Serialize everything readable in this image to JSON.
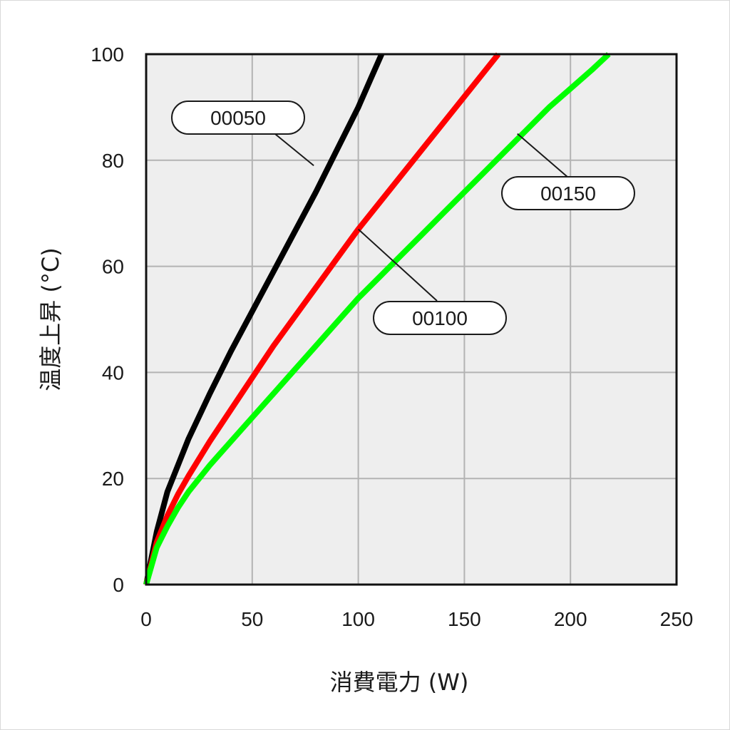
{
  "chart_data": {
    "type": "line",
    "xlabel": "消費電力 (W)",
    "ylabel": "温度上昇 (°C)",
    "xlim": [
      0,
      250
    ],
    "ylim": [
      0,
      100
    ],
    "x_ticks": [
      "0",
      "50",
      "100",
      "150",
      "200",
      "250"
    ],
    "y_ticks": [
      "0",
      "20",
      "40",
      "60",
      "80",
      "100"
    ],
    "grid": true,
    "plot_background": "#eeeeee",
    "series": [
      {
        "name": "00050",
        "color": "#000000",
        "points": [
          [
            0,
            0
          ],
          [
            5,
            10
          ],
          [
            10,
            17.5
          ],
          [
            20,
            27.5
          ],
          [
            30,
            36
          ],
          [
            40,
            44
          ],
          [
            50,
            51.5
          ],
          [
            60,
            59
          ],
          [
            70,
            66.5
          ],
          [
            80,
            74
          ],
          [
            90,
            82
          ],
          [
            100,
            90
          ],
          [
            106,
            95.5
          ],
          [
            111,
            100
          ]
        ]
      },
      {
        "name": "00100",
        "color": "#ff0000",
        "points": [
          [
            0,
            0
          ],
          [
            5,
            8
          ],
          [
            10,
            13
          ],
          [
            15,
            17
          ],
          [
            20,
            20.5
          ],
          [
            30,
            27
          ],
          [
            40,
            33
          ],
          [
            50,
            39
          ],
          [
            60,
            45
          ],
          [
            70,
            50.5
          ],
          [
            80,
            56
          ],
          [
            90,
            61.5
          ],
          [
            100,
            67
          ],
          [
            110,
            72
          ],
          [
            120,
            77
          ],
          [
            130,
            82
          ],
          [
            140,
            87
          ],
          [
            150,
            92
          ],
          [
            160,
            97
          ],
          [
            166,
            100
          ]
        ]
      },
      {
        "name": "00150",
        "color": "#00ff00",
        "points": [
          [
            0,
            0
          ],
          [
            5,
            7
          ],
          [
            10,
            11
          ],
          [
            15,
            14.5
          ],
          [
            20,
            17.5
          ],
          [
            30,
            22.5
          ],
          [
            40,
            27
          ],
          [
            50,
            31.5
          ],
          [
            60,
            36
          ],
          [
            70,
            40.5
          ],
          [
            80,
            45
          ],
          [
            90,
            49.5
          ],
          [
            100,
            54
          ],
          [
            110,
            58
          ],
          [
            120,
            62
          ],
          [
            130,
            66
          ],
          [
            140,
            70
          ],
          [
            150,
            74
          ],
          [
            160,
            78
          ],
          [
            170,
            82
          ],
          [
            180,
            86
          ],
          [
            190,
            90
          ],
          [
            200,
            93.5
          ],
          [
            210,
            97
          ],
          [
            218,
            100
          ]
        ]
      }
    ],
    "annotations": [
      {
        "label": "00050",
        "series": "00050",
        "leader_to": [
          79,
          79
        ]
      },
      {
        "label": "00100",
        "series": "00100",
        "leader_to": [
          100,
          67
        ]
      },
      {
        "label": "00150",
        "series": "00150",
        "leader_to": [
          175,
          85
        ]
      }
    ]
  }
}
